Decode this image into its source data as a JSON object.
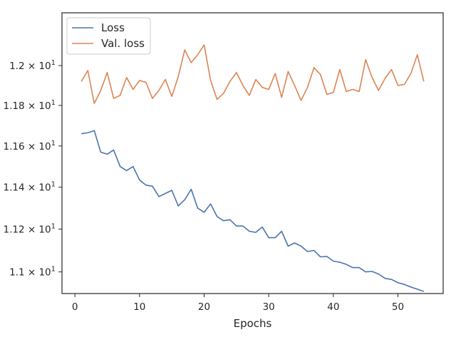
{
  "chart_data": {
    "type": "line",
    "title": "",
    "xlabel": "Epochs",
    "ylabel": "",
    "yscale": "log",
    "xlim": [
      -2,
      57
    ],
    "ylim": [
      10.9,
      12.27
    ],
    "grid": false,
    "legend_position": "top-left",
    "x_ticks": [
      0,
      10,
      20,
      30,
      40,
      50
    ],
    "x_tick_labels": [
      "0",
      "10",
      "20",
      "30",
      "40",
      "50"
    ],
    "y_ticks": [
      11.0,
      11.2,
      11.4,
      11.6,
      11.8,
      12.0
    ],
    "y_tick_labels": [
      "1.1 × 10",
      "1.12 × 10",
      "1.14 × 10",
      "1.16 × 10",
      "1.18 × 10",
      "1.2 × 10"
    ],
    "y_tick_exponent": "1",
    "x": [
      1,
      2,
      3,
      4,
      5,
      6,
      7,
      8,
      9,
      10,
      11,
      12,
      13,
      14,
      15,
      16,
      17,
      18,
      19,
      20,
      21,
      22,
      23,
      24,
      25,
      26,
      27,
      28,
      29,
      30,
      31,
      32,
      33,
      34,
      35,
      36,
      37,
      38,
      39,
      40,
      41,
      42,
      43,
      44,
      45,
      46,
      47,
      48,
      49,
      50,
      51,
      52,
      53,
      54
    ],
    "series": [
      {
        "name": "Loss",
        "color": "#4c72b0",
        "values": [
          11.66,
          11.665,
          11.675,
          11.57,
          11.56,
          11.58,
          11.5,
          11.48,
          11.5,
          11.435,
          11.41,
          11.405,
          11.355,
          11.37,
          11.385,
          11.31,
          11.34,
          11.39,
          11.3,
          11.28,
          11.32,
          11.26,
          11.24,
          11.245,
          11.215,
          11.215,
          11.19,
          11.185,
          11.21,
          11.16,
          11.16,
          11.19,
          11.12,
          11.135,
          11.12,
          11.095,
          11.1,
          11.07,
          11.072,
          11.05,
          11.045,
          11.035,
          11.02,
          11.02,
          11.0,
          11.002,
          10.99,
          10.97,
          10.965,
          10.95,
          10.942,
          10.93,
          10.92,
          10.91
        ]
      },
      {
        "name": "Val. loss",
        "color": "#dd8452",
        "values": [
          11.92,
          11.975,
          11.81,
          11.875,
          11.965,
          11.835,
          11.85,
          11.94,
          11.88,
          11.925,
          11.915,
          11.835,
          11.875,
          11.93,
          11.845,
          11.945,
          12.08,
          12.015,
          12.055,
          12.105,
          11.925,
          11.83,
          11.86,
          11.92,
          11.965,
          11.9,
          11.85,
          11.93,
          11.89,
          11.88,
          11.96,
          11.84,
          11.97,
          11.9,
          11.825,
          11.89,
          11.99,
          11.955,
          11.855,
          11.865,
          11.98,
          11.87,
          11.88,
          11.87,
          12.03,
          11.94,
          11.875,
          11.935,
          11.98,
          11.9,
          11.905,
          11.96,
          12.055,
          11.92
        ]
      }
    ]
  }
}
